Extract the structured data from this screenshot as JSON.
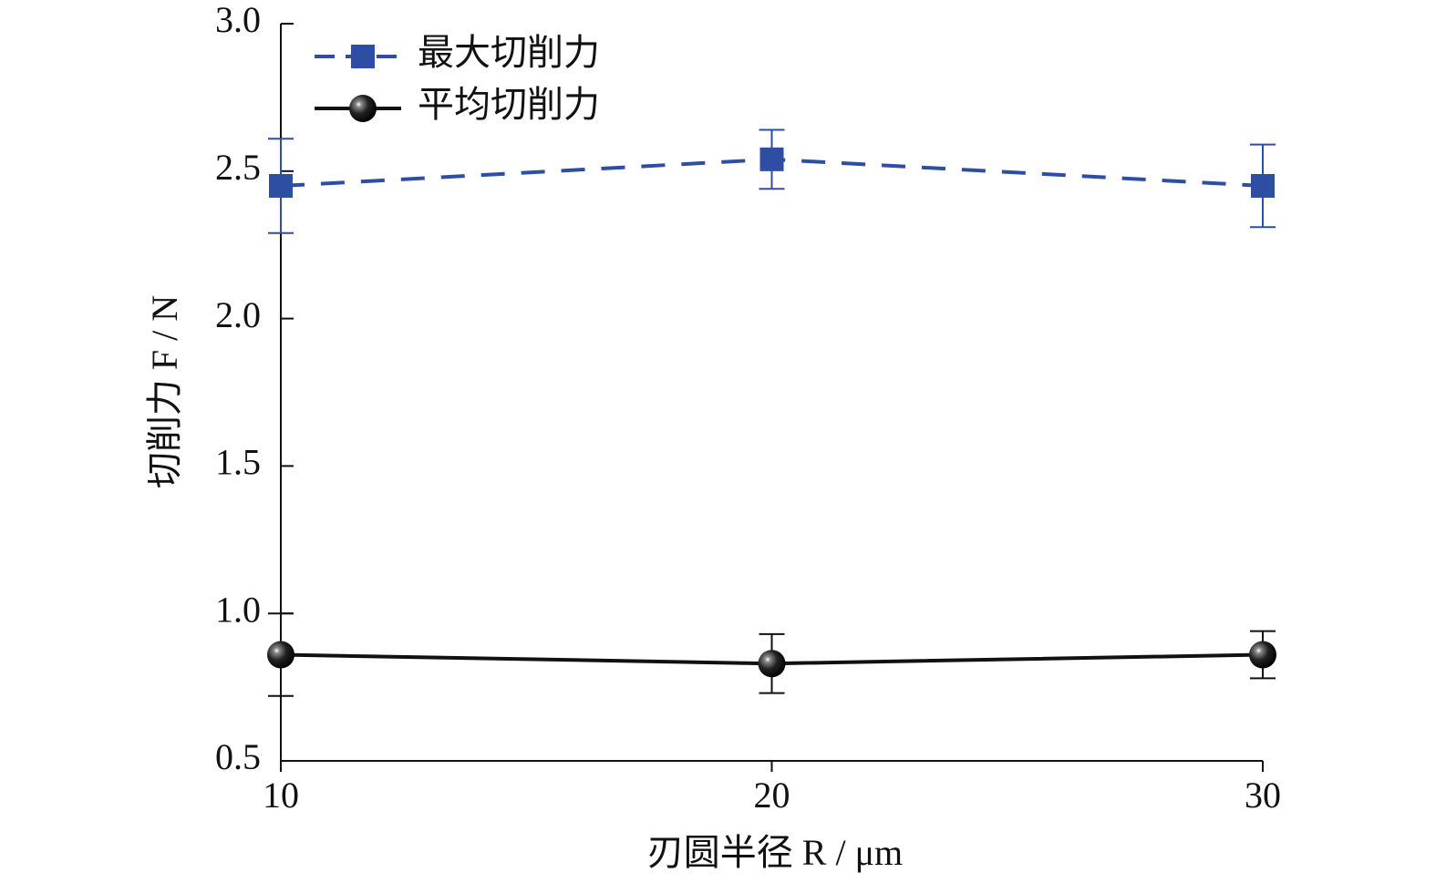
{
  "chart_data": {
    "type": "line",
    "x_label": "刃圆半径 R / μm",
    "y_label": "切削力 F / N",
    "x": [
      10,
      20,
      30
    ],
    "xlim": [
      10,
      30
    ],
    "xticks": [
      10,
      20,
      30
    ],
    "ylim": [
      0.5,
      3.0
    ],
    "yticks": [
      0.5,
      {
        "value": 1.0,
        "label": "1.0"
      },
      1.5,
      {
        "value": 2.0,
        "label": "2.0"
      },
      2.5,
      {
        "value": 3.0,
        "label": "3.0"
      }
    ],
    "legend": "upper left",
    "series": [
      {
        "name": "最大切削力",
        "color": "#2e4ea3",
        "marker": "square",
        "dash": true,
        "values": [
          2.45,
          2.54,
          2.45
        ],
        "errors": [
          0.16,
          0.1,
          0.14
        ]
      },
      {
        "name": "平均切削力",
        "color": "#111111",
        "marker": "circle",
        "dash": false,
        "values": [
          0.86,
          0.83,
          0.86
        ],
        "errors": [
          0.14,
          0.1,
          0.08
        ]
      }
    ]
  }
}
